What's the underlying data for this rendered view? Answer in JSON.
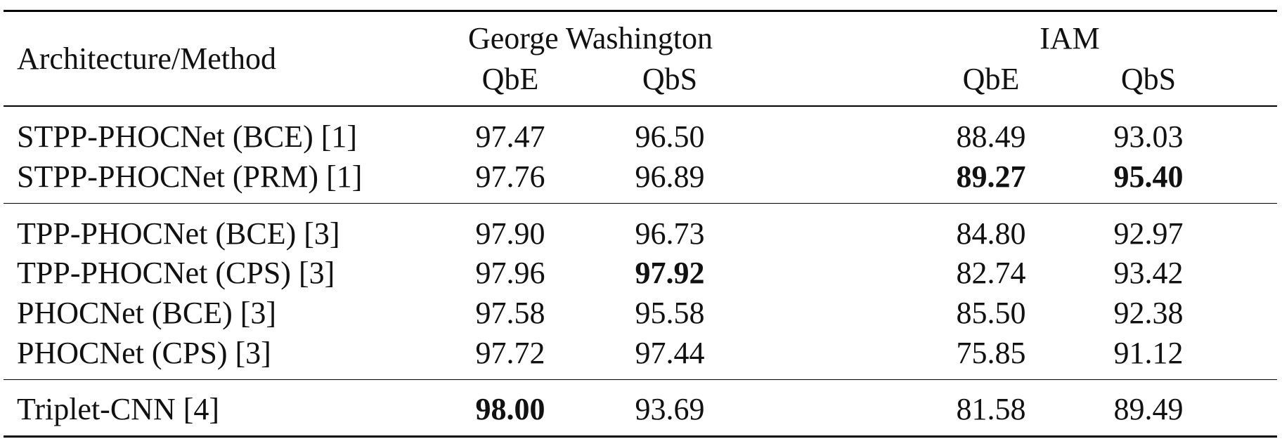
{
  "header": {
    "method_label": "Architecture/Method",
    "groups": [
      {
        "name": "George Washington",
        "cols": [
          "QbE",
          "QbS"
        ]
      },
      {
        "name": "IAM",
        "cols": [
          "QbE",
          "QbS"
        ]
      }
    ]
  },
  "rows": [
    {
      "method": "STPP-PHOCNet (BCE) [1]",
      "gw_qbe": "97.47",
      "gw_qbs": "96.50",
      "iam_qbe": "88.49",
      "iam_qbs": "93.03"
    },
    {
      "method": "STPP-PHOCNet (PRM) [1]",
      "gw_qbe": "97.76",
      "gw_qbs": "96.89",
      "iam_qbe": "89.27",
      "iam_qbs": "95.40"
    },
    {
      "method": "TPP-PHOCNet (BCE) [3]",
      "gw_qbe": "97.90",
      "gw_qbs": "96.73",
      "iam_qbe": "84.80",
      "iam_qbs": "92.97"
    },
    {
      "method": "TPP-PHOCNet (CPS) [3]",
      "gw_qbe": "97.96",
      "gw_qbs": "97.92",
      "iam_qbe": "82.74",
      "iam_qbs": "93.42"
    },
    {
      "method": "PHOCNet (BCE) [3]",
      "gw_qbe": "97.58",
      "gw_qbs": "95.58",
      "iam_qbe": "85.50",
      "iam_qbs": "92.38"
    },
    {
      "method": "PHOCNet (CPS) [3]",
      "gw_qbe": "97.72",
      "gw_qbs": "97.44",
      "iam_qbe": "75.85",
      "iam_qbs": "91.12"
    },
    {
      "method": "Triplet-CNN [4]",
      "gw_qbe": "98.00",
      "gw_qbs": "93.69",
      "iam_qbe": "81.58",
      "iam_qbs": "89.49"
    }
  ]
}
